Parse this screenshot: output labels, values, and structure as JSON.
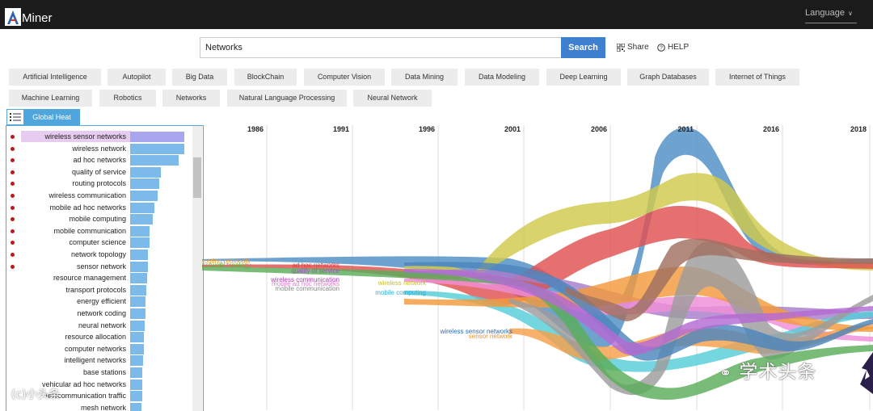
{
  "header": {
    "logo_letter": "A",
    "logo_text": "Miner",
    "language_label": "Language"
  },
  "search": {
    "value": "Networks",
    "button_label": "Search",
    "share_label": "Share",
    "help_label": "HELP"
  },
  "tags": [
    "Artificial Intelligence",
    "Autopilot",
    "Big Data",
    "BlockChain",
    "Computer Vision",
    "Data Mining",
    "Data Modeling",
    "Deep Learning",
    "Graph Databases",
    "Internet of Things",
    "Machine Learning",
    "Robotics",
    "Networks",
    "Natural Language Processing",
    "Neural Network"
  ],
  "view": {
    "tab_label": "Global Heat"
  },
  "keywords": [
    {
      "label": "wireless sensor networks",
      "value": 100,
      "hot": true,
      "selected": true
    },
    {
      "label": "wireless network",
      "value": 100,
      "hot": true
    },
    {
      "label": "ad hoc networks",
      "value": 90,
      "hot": true
    },
    {
      "label": "quality of service",
      "value": 56,
      "hot": true
    },
    {
      "label": "routing protocols",
      "value": 53,
      "hot": true
    },
    {
      "label": "wireless communication",
      "value": 51,
      "hot": true
    },
    {
      "label": "mobile ad hoc networks",
      "value": 45,
      "hot": true
    },
    {
      "label": "mobile computing",
      "value": 42,
      "hot": true
    },
    {
      "label": "mobile communication",
      "value": 36,
      "hot": true
    },
    {
      "label": "computer science",
      "value": 36,
      "hot": true
    },
    {
      "label": "network topology",
      "value": 33,
      "hot": true
    },
    {
      "label": "sensor network",
      "value": 33,
      "hot": true
    },
    {
      "label": "resource management",
      "value": 31,
      "hot": false
    },
    {
      "label": "transport protocols",
      "value": 30,
      "hot": false
    },
    {
      "label": "energy efficient",
      "value": 29,
      "hot": false
    },
    {
      "label": "network coding",
      "value": 28,
      "hot": false
    },
    {
      "label": "neural network",
      "value": 27,
      "hot": false
    },
    {
      "label": "resource allocation",
      "value": 26,
      "hot": false
    },
    {
      "label": "computer networks",
      "value": 25,
      "hot": false
    },
    {
      "label": "intelligent networks",
      "value": 24,
      "hot": false
    },
    {
      "label": "base stations",
      "value": 23,
      "hot": false
    },
    {
      "label": "vehicular ad hoc networks",
      "value": 23,
      "hot": false
    },
    {
      "label": "telecommunication traffic",
      "value": 22,
      "hot": false
    },
    {
      "label": "mesh network",
      "value": 21,
      "hot": false
    }
  ],
  "timeline": {
    "years": [
      "1986",
      "1991",
      "1996",
      "2001",
      "2006",
      "2011",
      "2016",
      "2018"
    ],
    "stream_labels": [
      {
        "text": "routing protocols",
        "color": "#f0a030"
      },
      {
        "text": "network topology",
        "color": "#5cae3c"
      },
      {
        "text": "ad hoc networks",
        "color": "#d83a3a"
      },
      {
        "text": "quality of service",
        "color": "#9b59b6"
      },
      {
        "text": "wireless communication",
        "color": "#b040b0"
      },
      {
        "text": "mobile ad hoc networks",
        "color": "#e07ad0"
      },
      {
        "text": "mobile communication",
        "color": "#888888"
      },
      {
        "text": "wireless network",
        "color": "#c8c020"
      },
      {
        "text": "mobile computing",
        "color": "#2aaed6"
      },
      {
        "text": "wireless sensor networks",
        "color": "#2b6cb0"
      },
      {
        "text": "sensor network",
        "color": "#f0902a"
      }
    ]
  },
  "watermark": {
    "main": "学术头条",
    "bottom": "(c)小头条"
  }
}
